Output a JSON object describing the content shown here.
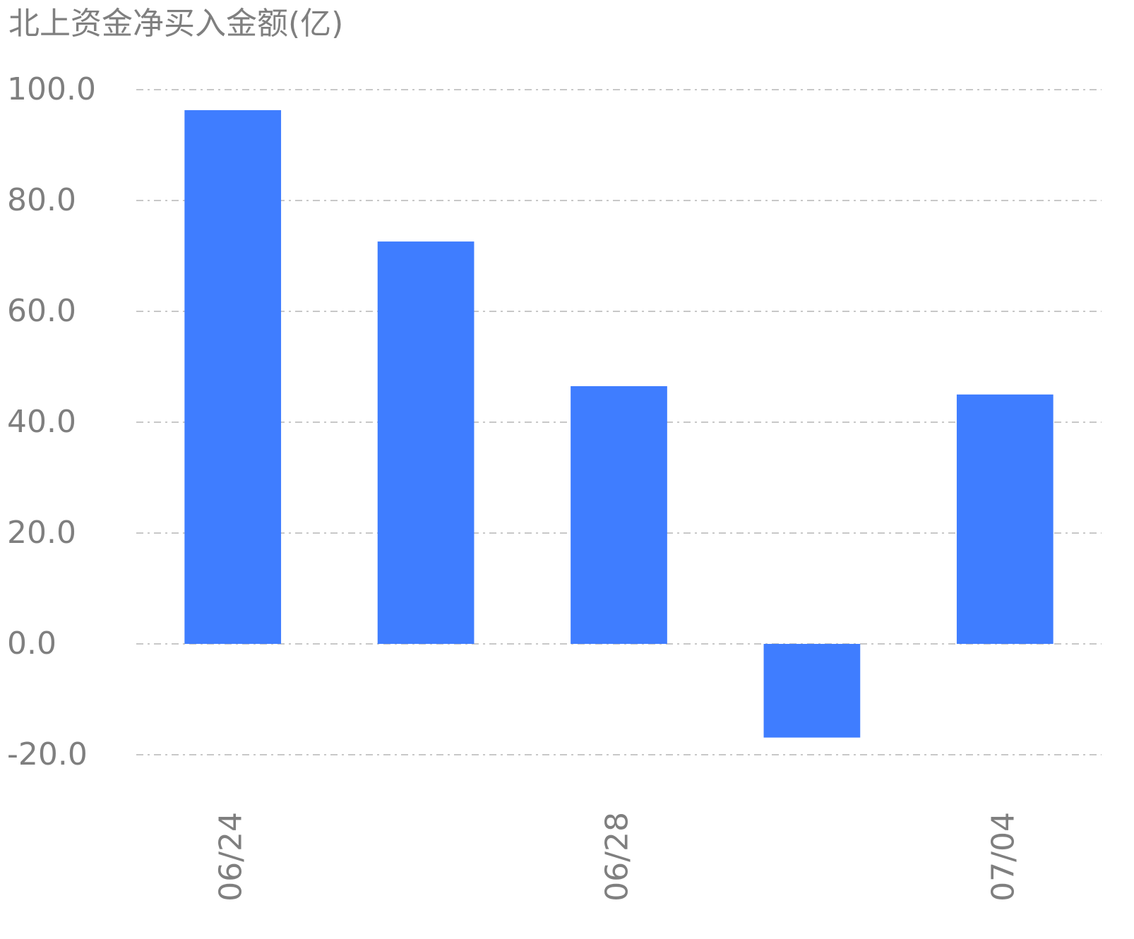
{
  "chart_data": {
    "type": "bar",
    "title": "北上资金净买入金额(亿)",
    "categories": [
      "06/24",
      null,
      "06/28",
      null,
      "07/04"
    ],
    "values": [
      96.3,
      72.6,
      46.5,
      -16.9,
      45.0
    ],
    "color": "#3f7dff",
    "ylim": [
      -20,
      100
    ],
    "yticks": [
      {
        "value": -20,
        "label": "-20.0"
      },
      {
        "value": 0,
        "label": "0.0"
      },
      {
        "value": 20,
        "label": "20.0"
      },
      {
        "value": 40,
        "label": "40.0"
      },
      {
        "value": 60,
        "label": "60.0"
      },
      {
        "value": 80,
        "label": "80.0"
      },
      {
        "value": 100,
        "label": "100.0"
      }
    ],
    "grid": true
  }
}
